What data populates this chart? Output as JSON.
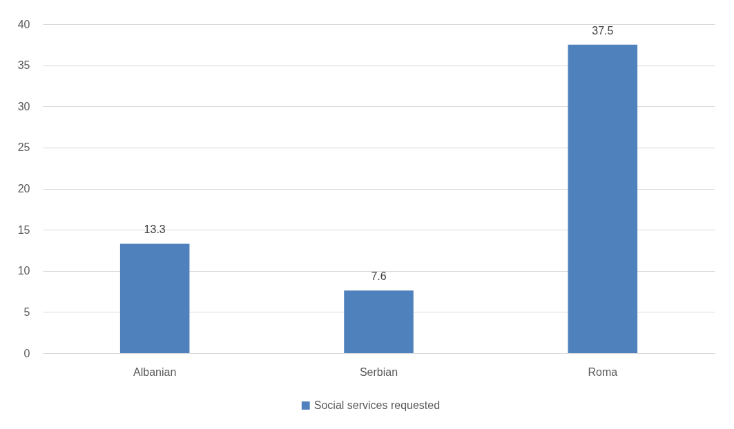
{
  "chart_data": {
    "type": "bar",
    "categories": [
      "Albanian",
      "Serbian",
      "Roma"
    ],
    "series": [
      {
        "name": "Social services requested",
        "color": "#4f81bd",
        "values": [
          13.3,
          7.6,
          37.5
        ]
      }
    ],
    "ylim": [
      0,
      40
    ],
    "yticks": [
      0,
      5,
      10,
      15,
      20,
      25,
      30,
      35,
      40
    ],
    "grid": "y",
    "legend": "bottom",
    "data_labels": true
  }
}
